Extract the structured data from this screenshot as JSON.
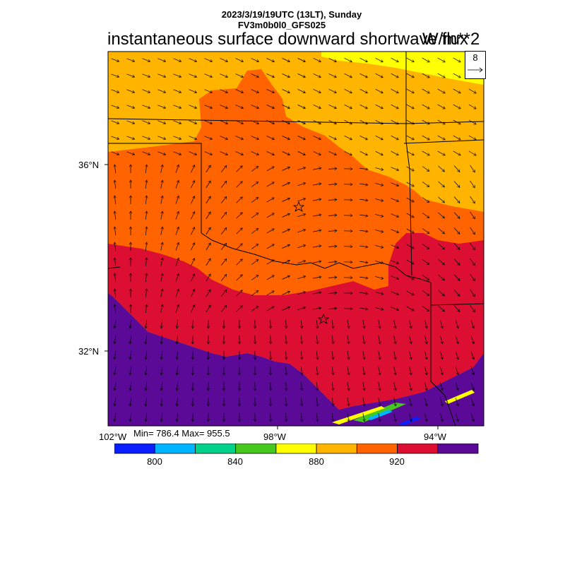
{
  "header": {
    "datetime": "2023/3/19/19UTC (13LT), Sunday",
    "model": "FV3m0b0l0_GFS025"
  },
  "title": "instantaneous surface downward shortwave flux",
  "units": "W/m**2",
  "reference_vector": {
    "value": "8"
  },
  "axes": {
    "lat_labels": [
      "36°N",
      "32°N"
    ],
    "lon_labels": [
      "102°W",
      "98°W",
      "94°W"
    ]
  },
  "stats": {
    "text": "Min= 786.4 Max= 955.5",
    "min": 786.4,
    "max": 955.5
  },
  "colorbar": {
    "colors": [
      "#0a1fff",
      "#00b4ff",
      "#00d28c",
      "#46c81e",
      "#ffff00",
      "#ffb400",
      "#ff6400",
      "#dc0f32",
      "#5a0a96"
    ],
    "labels": [
      "800",
      "840",
      "880",
      "920"
    ]
  },
  "map": {
    "region": "Oklahoma / north Texas",
    "markers": [
      "star-oklahoma-city",
      "star-dallas"
    ],
    "colors": {
      "band_north": "#ffb400",
      "band_yellow": "#ffff00",
      "band_mid": "#ff6400",
      "band_south": "#dc0f32",
      "band_far_south": "#5a0a96"
    }
  }
}
